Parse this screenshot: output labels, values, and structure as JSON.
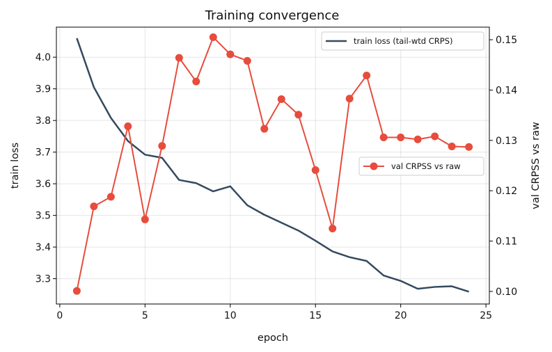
{
  "chart_data": {
    "type": "line",
    "title": "Training convergence",
    "xlabel": "epoch",
    "ylabel_left": "train loss",
    "ylabel_right": "val CRPSS vs raw",
    "xlim": [
      -0.2,
      25.2
    ],
    "ylim_left": [
      3.22,
      4.095
    ],
    "ylim_right": [
      0.0975,
      0.1525
    ],
    "x_ticks": [
      0,
      5,
      10,
      15,
      20,
      25
    ],
    "y_ticks_left": [
      3.3,
      3.4,
      3.5,
      3.6,
      3.7,
      3.8,
      3.9,
      4.0
    ],
    "y_ticks_right": [
      0.1,
      0.11,
      0.12,
      0.13,
      0.14,
      0.15
    ],
    "grid": true,
    "x": [
      1,
      2,
      3,
      4,
      5,
      6,
      7,
      8,
      9,
      10,
      11,
      12,
      13,
      14,
      15,
      16,
      17,
      18,
      19,
      20,
      21,
      22,
      23,
      24
    ],
    "series": [
      {
        "name": "train loss (tail-wtd CRPS)",
        "axis": "left",
        "color": "#34495e",
        "marker": "none",
        "values": [
          4.06,
          3.905,
          3.808,
          3.735,
          3.692,
          3.682,
          3.612,
          3.602,
          3.576,
          3.592,
          3.532,
          3.502,
          3.477,
          3.452,
          3.42,
          3.386,
          3.368,
          3.356,
          3.31,
          3.293,
          3.268,
          3.274,
          3.276,
          3.259
        ]
      },
      {
        "name": "val CRPSS vs raw",
        "axis": "right",
        "color": "#e74c3c",
        "marker": "circle",
        "values": [
          0.1001,
          0.1169,
          0.1188,
          0.1328,
          0.1143,
          0.1289,
          0.1464,
          0.1417,
          0.1505,
          0.1471,
          0.1458,
          0.1323,
          0.1382,
          0.1351,
          0.1241,
          0.1125,
          0.1383,
          0.1429,
          0.1306,
          0.1306,
          0.1302,
          0.1308,
          0.1288,
          0.1287
        ]
      }
    ],
    "legend_placement": [
      "upper-right",
      "center-right"
    ]
  }
}
